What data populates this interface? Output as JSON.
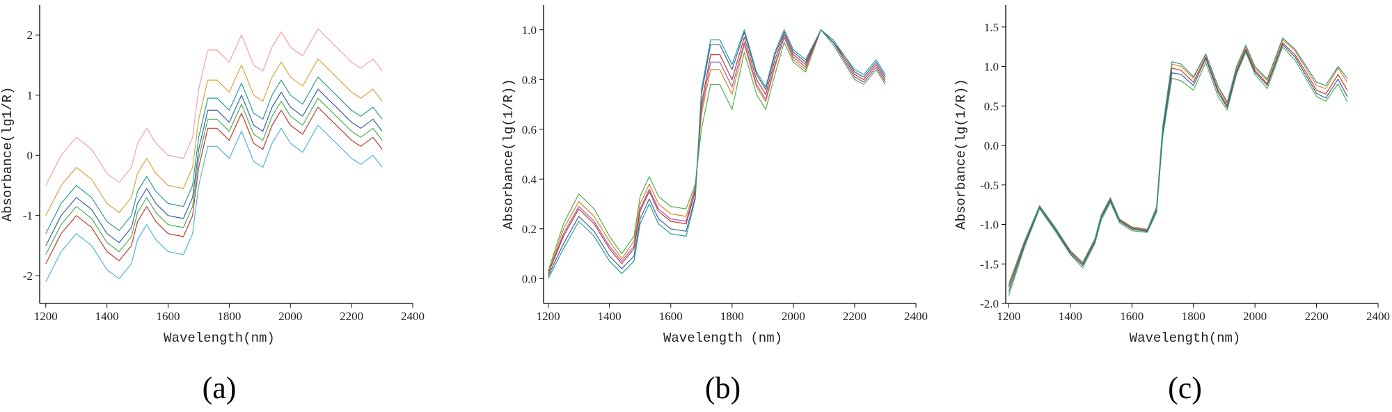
{
  "chart_data": [
    {
      "type": "line",
      "caption": "(a)",
      "x_label": "Wavelength(nm)",
      "y_label": "Absorbance(lg1/R)",
      "x": [
        1200,
        1250,
        1300,
        1350,
        1400,
        1440,
        1480,
        1500,
        1530,
        1560,
        1600,
        1650,
        1680,
        1700,
        1730,
        1760,
        1800,
        1840,
        1880,
        1910,
        1940,
        1970,
        2000,
        2040,
        2090,
        2130,
        2170,
        2200,
        2230,
        2270,
        2300
      ],
      "xlim": [
        1180,
        2400
      ],
      "xticks": [
        1200,
        1400,
        1600,
        1800,
        2000,
        2200,
        2400
      ],
      "ylim": [
        -2.46,
        2.5
      ],
      "yticks": [
        -2,
        -1,
        0,
        1,
        2
      ],
      "series": [
        {
          "color": "#f4a0a0",
          "values": [
            -0.5,
            0.0,
            0.3,
            0.1,
            -0.3,
            -0.45,
            -0.2,
            0.2,
            0.45,
            0.2,
            0.0,
            -0.05,
            0.3,
            1.1,
            1.75,
            1.75,
            1.55,
            2.0,
            1.5,
            1.4,
            1.8,
            2.05,
            1.8,
            1.65,
            2.1,
            1.9,
            1.7,
            1.55,
            1.45,
            1.6,
            1.4
          ]
        },
        {
          "color": "#d9a43a",
          "values": [
            -1.0,
            -0.5,
            -0.2,
            -0.4,
            -0.8,
            -0.95,
            -0.7,
            -0.3,
            -0.05,
            -0.3,
            -0.5,
            -0.55,
            -0.2,
            0.6,
            1.25,
            1.25,
            1.05,
            1.5,
            1.0,
            0.9,
            1.3,
            1.55,
            1.3,
            1.15,
            1.6,
            1.4,
            1.2,
            1.05,
            0.95,
            1.1,
            0.9
          ]
        },
        {
          "color": "#2a9d8f",
          "values": [
            -1.3,
            -0.8,
            -0.5,
            -0.7,
            -1.1,
            -1.25,
            -1.0,
            -0.6,
            -0.35,
            -0.6,
            -0.8,
            -0.85,
            -0.5,
            0.3,
            0.95,
            0.95,
            0.75,
            1.2,
            0.7,
            0.6,
            1.0,
            1.25,
            1.0,
            0.85,
            1.3,
            1.1,
            0.9,
            0.75,
            0.65,
            0.8,
            0.6
          ]
        },
        {
          "color": "#3a5fa8",
          "values": [
            -1.5,
            -1.0,
            -0.7,
            -0.9,
            -1.3,
            -1.45,
            -1.2,
            -0.8,
            -0.55,
            -0.8,
            -1.0,
            -1.05,
            -0.7,
            0.1,
            0.75,
            0.75,
            0.55,
            1.0,
            0.5,
            0.4,
            0.8,
            1.05,
            0.8,
            0.65,
            1.1,
            0.9,
            0.7,
            0.55,
            0.45,
            0.6,
            0.4
          ]
        },
        {
          "color": "#4caf50",
          "values": [
            -1.65,
            -1.15,
            -0.85,
            -1.05,
            -1.45,
            -1.6,
            -1.35,
            -0.95,
            -0.7,
            -0.95,
            -1.15,
            -1.2,
            -0.85,
            -0.05,
            0.6,
            0.6,
            0.4,
            0.85,
            0.35,
            0.25,
            0.65,
            0.9,
            0.65,
            0.5,
            0.95,
            0.75,
            0.55,
            0.4,
            0.3,
            0.45,
            0.25
          ]
        },
        {
          "color": "#c0392b",
          "values": [
            -1.8,
            -1.3,
            -1.0,
            -1.2,
            -1.6,
            -1.75,
            -1.5,
            -1.1,
            -0.85,
            -1.1,
            -1.3,
            -1.35,
            -1.0,
            -0.2,
            0.45,
            0.45,
            0.25,
            0.7,
            0.2,
            0.1,
            0.5,
            0.75,
            0.5,
            0.35,
            0.8,
            0.6,
            0.4,
            0.25,
            0.15,
            0.3,
            0.1
          ]
        },
        {
          "color": "#4fb3d9",
          "values": [
            -2.1,
            -1.6,
            -1.3,
            -1.5,
            -1.9,
            -2.05,
            -1.8,
            -1.4,
            -1.15,
            -1.4,
            -1.6,
            -1.65,
            -1.3,
            -0.5,
            0.15,
            0.15,
            -0.05,
            0.4,
            -0.1,
            -0.2,
            0.2,
            0.45,
            0.2,
            0.05,
            0.5,
            0.3,
            0.1,
            -0.05,
            -0.15,
            0.0,
            -0.2
          ]
        }
      ]
    },
    {
      "type": "line",
      "caption": "(b)",
      "x_label": "Wavelength (nm)",
      "y_label": "Absorbance(lg(1/R))",
      "x": [
        1200,
        1250,
        1300,
        1350,
        1400,
        1440,
        1480,
        1500,
        1530,
        1560,
        1600,
        1650,
        1680,
        1700,
        1730,
        1760,
        1800,
        1840,
        1880,
        1910,
        1940,
        1970,
        2000,
        2040,
        2090,
        2130,
        2170,
        2200,
        2230,
        2270,
        2300
      ],
      "xlim": [
        1185,
        2400
      ],
      "xticks": [
        1200,
        1400,
        1600,
        1800,
        2000,
        2200,
        2400
      ],
      "ylim": [
        -0.1,
        1.1
      ],
      "yticks": [
        {
          "value": 0,
          "label": "0.0"
        },
        0.2,
        0.4,
        0.6,
        0.8,
        {
          "value": 1,
          "label": "1.0"
        }
      ],
      "series": [
        {
          "color": "#4caf50",
          "values": [
            0.03,
            0.22,
            0.34,
            0.28,
            0.17,
            0.1,
            0.17,
            0.33,
            0.41,
            0.33,
            0.29,
            0.28,
            0.38,
            0.6,
            0.78,
            0.78,
            0.68,
            0.91,
            0.74,
            0.68,
            0.82,
            0.95,
            0.87,
            0.83,
            1.0,
            0.94,
            0.86,
            0.8,
            0.78,
            0.84,
            0.78
          ]
        },
        {
          "color": "#e67e22",
          "values": [
            0.02,
            0.2,
            0.31,
            0.25,
            0.15,
            0.08,
            0.15,
            0.3,
            0.38,
            0.3,
            0.26,
            0.25,
            0.37,
            0.66,
            0.84,
            0.84,
            0.74,
            0.94,
            0.77,
            0.71,
            0.85,
            0.97,
            0.88,
            0.84,
            1.0,
            0.95,
            0.87,
            0.81,
            0.79,
            0.85,
            0.79
          ]
        },
        {
          "color": "#9b59b6",
          "values": [
            0.02,
            0.18,
            0.29,
            0.23,
            0.13,
            0.07,
            0.13,
            0.28,
            0.36,
            0.28,
            0.24,
            0.23,
            0.36,
            0.68,
            0.87,
            0.87,
            0.77,
            0.95,
            0.78,
            0.72,
            0.86,
            0.97,
            0.89,
            0.85,
            1.0,
            0.95,
            0.87,
            0.81,
            0.79,
            0.85,
            0.79
          ]
        },
        {
          "color": "#c0392b",
          "values": [
            0.02,
            0.17,
            0.28,
            0.22,
            0.12,
            0.06,
            0.12,
            0.27,
            0.35,
            0.27,
            0.23,
            0.22,
            0.35,
            0.7,
            0.9,
            0.9,
            0.8,
            0.97,
            0.8,
            0.74,
            0.88,
            0.98,
            0.9,
            0.86,
            1.0,
            0.95,
            0.88,
            0.82,
            0.8,
            0.86,
            0.8
          ]
        },
        {
          "color": "#3a5fa8",
          "values": [
            0.01,
            0.14,
            0.25,
            0.19,
            0.09,
            0.04,
            0.09,
            0.24,
            0.32,
            0.24,
            0.2,
            0.19,
            0.33,
            0.74,
            0.94,
            0.94,
            0.84,
            0.99,
            0.82,
            0.76,
            0.9,
            0.99,
            0.91,
            0.87,
            1.0,
            0.95,
            0.89,
            0.83,
            0.81,
            0.87,
            0.81
          ]
        },
        {
          "color": "#2a9d8f",
          "values": [
            0.0,
            0.12,
            0.23,
            0.17,
            0.07,
            0.02,
            0.07,
            0.22,
            0.3,
            0.22,
            0.18,
            0.17,
            0.32,
            0.76,
            0.96,
            0.96,
            0.86,
            1.0,
            0.83,
            0.77,
            0.91,
            1.0,
            0.92,
            0.88,
            1.0,
            0.96,
            0.89,
            0.84,
            0.82,
            0.88,
            0.82
          ]
        }
      ]
    },
    {
      "type": "line",
      "caption": "(c)",
      "x_label": "Wavelength(nm)",
      "y_label": "Absorbance(lg(1/R))",
      "x": [
        1200,
        1250,
        1300,
        1350,
        1400,
        1440,
        1480,
        1500,
        1530,
        1560,
        1600,
        1650,
        1680,
        1700,
        1730,
        1760,
        1800,
        1840,
        1880,
        1910,
        1940,
        1970,
        2000,
        2040,
        2090,
        2130,
        2170,
        2200,
        2230,
        2270,
        2300
      ],
      "xlim": [
        1190,
        2400
      ],
      "xticks": [
        1200,
        1400,
        1600,
        1800,
        2000,
        2200,
        2400
      ],
      "ylim": [
        -2.0,
        1.78
      ],
      "yticks": [
        {
          "value": -2,
          "label": "-2.0"
        },
        -1.5,
        {
          "value": -1,
          "label": "-1.0"
        },
        -0.5,
        {
          "value": 0,
          "label": "0.0"
        },
        0.5,
        {
          "value": 1,
          "label": "1.0"
        },
        1.5
      ],
      "series": [
        {
          "color": "#4caf50",
          "values": [
            -1.9,
            -1.3,
            -0.8,
            -1.08,
            -1.38,
            -1.55,
            -1.24,
            -0.95,
            -0.72,
            -0.98,
            -1.08,
            -1.1,
            -0.85,
            0.1,
            0.85,
            0.82,
            0.7,
            1.05,
            0.62,
            0.45,
            0.9,
            1.18,
            0.9,
            0.72,
            1.25,
            1.08,
            0.82,
            0.62,
            0.56,
            0.78,
            0.55
          ]
        },
        {
          "color": "#e67e22",
          "values": [
            -1.75,
            -1.22,
            -0.76,
            -1.03,
            -1.33,
            -1.48,
            -1.18,
            -0.88,
            -0.66,
            -0.93,
            -1.03,
            -1.06,
            -0.78,
            0.24,
            1.03,
            1.0,
            0.85,
            1.15,
            0.74,
            0.53,
            0.98,
            1.25,
            0.98,
            0.82,
            1.34,
            1.2,
            0.95,
            0.76,
            0.72,
            0.98,
            0.8
          ]
        },
        {
          "color": "#c0392b",
          "values": [
            -1.8,
            -1.25,
            -0.78,
            -1.05,
            -1.35,
            -1.5,
            -1.2,
            -0.9,
            -0.68,
            -0.95,
            -1.05,
            -1.08,
            -0.8,
            0.2,
            0.98,
            0.95,
            0.8,
            1.12,
            0.7,
            0.5,
            0.95,
            1.22,
            0.95,
            0.78,
            1.3,
            1.15,
            0.9,
            0.7,
            0.65,
            0.9,
            0.7
          ]
        },
        {
          "color": "#3a5fa8",
          "values": [
            -1.85,
            -1.27,
            -0.79,
            -1.06,
            -1.37,
            -1.52,
            -1.22,
            -0.92,
            -0.7,
            -0.96,
            -1.06,
            -1.09,
            -0.82,
            0.15,
            0.92,
            0.9,
            0.76,
            1.1,
            0.67,
            0.48,
            0.93,
            1.2,
            0.93,
            0.76,
            1.28,
            1.12,
            0.86,
            0.66,
            0.6,
            0.84,
            0.62
          ]
        },
        {
          "color": "#2a9d8f",
          "values": [
            -1.78,
            -1.23,
            -0.77,
            -1.04,
            -1.34,
            -1.49,
            -1.19,
            -0.89,
            -0.67,
            -0.94,
            -1.04,
            -1.07,
            -0.79,
            0.22,
            1.06,
            1.03,
            0.87,
            1.16,
            0.75,
            0.55,
            1.0,
            1.27,
            1.0,
            0.84,
            1.36,
            1.22,
            0.98,
            0.8,
            0.76,
            1.0,
            0.85
          ]
        }
      ]
    }
  ]
}
